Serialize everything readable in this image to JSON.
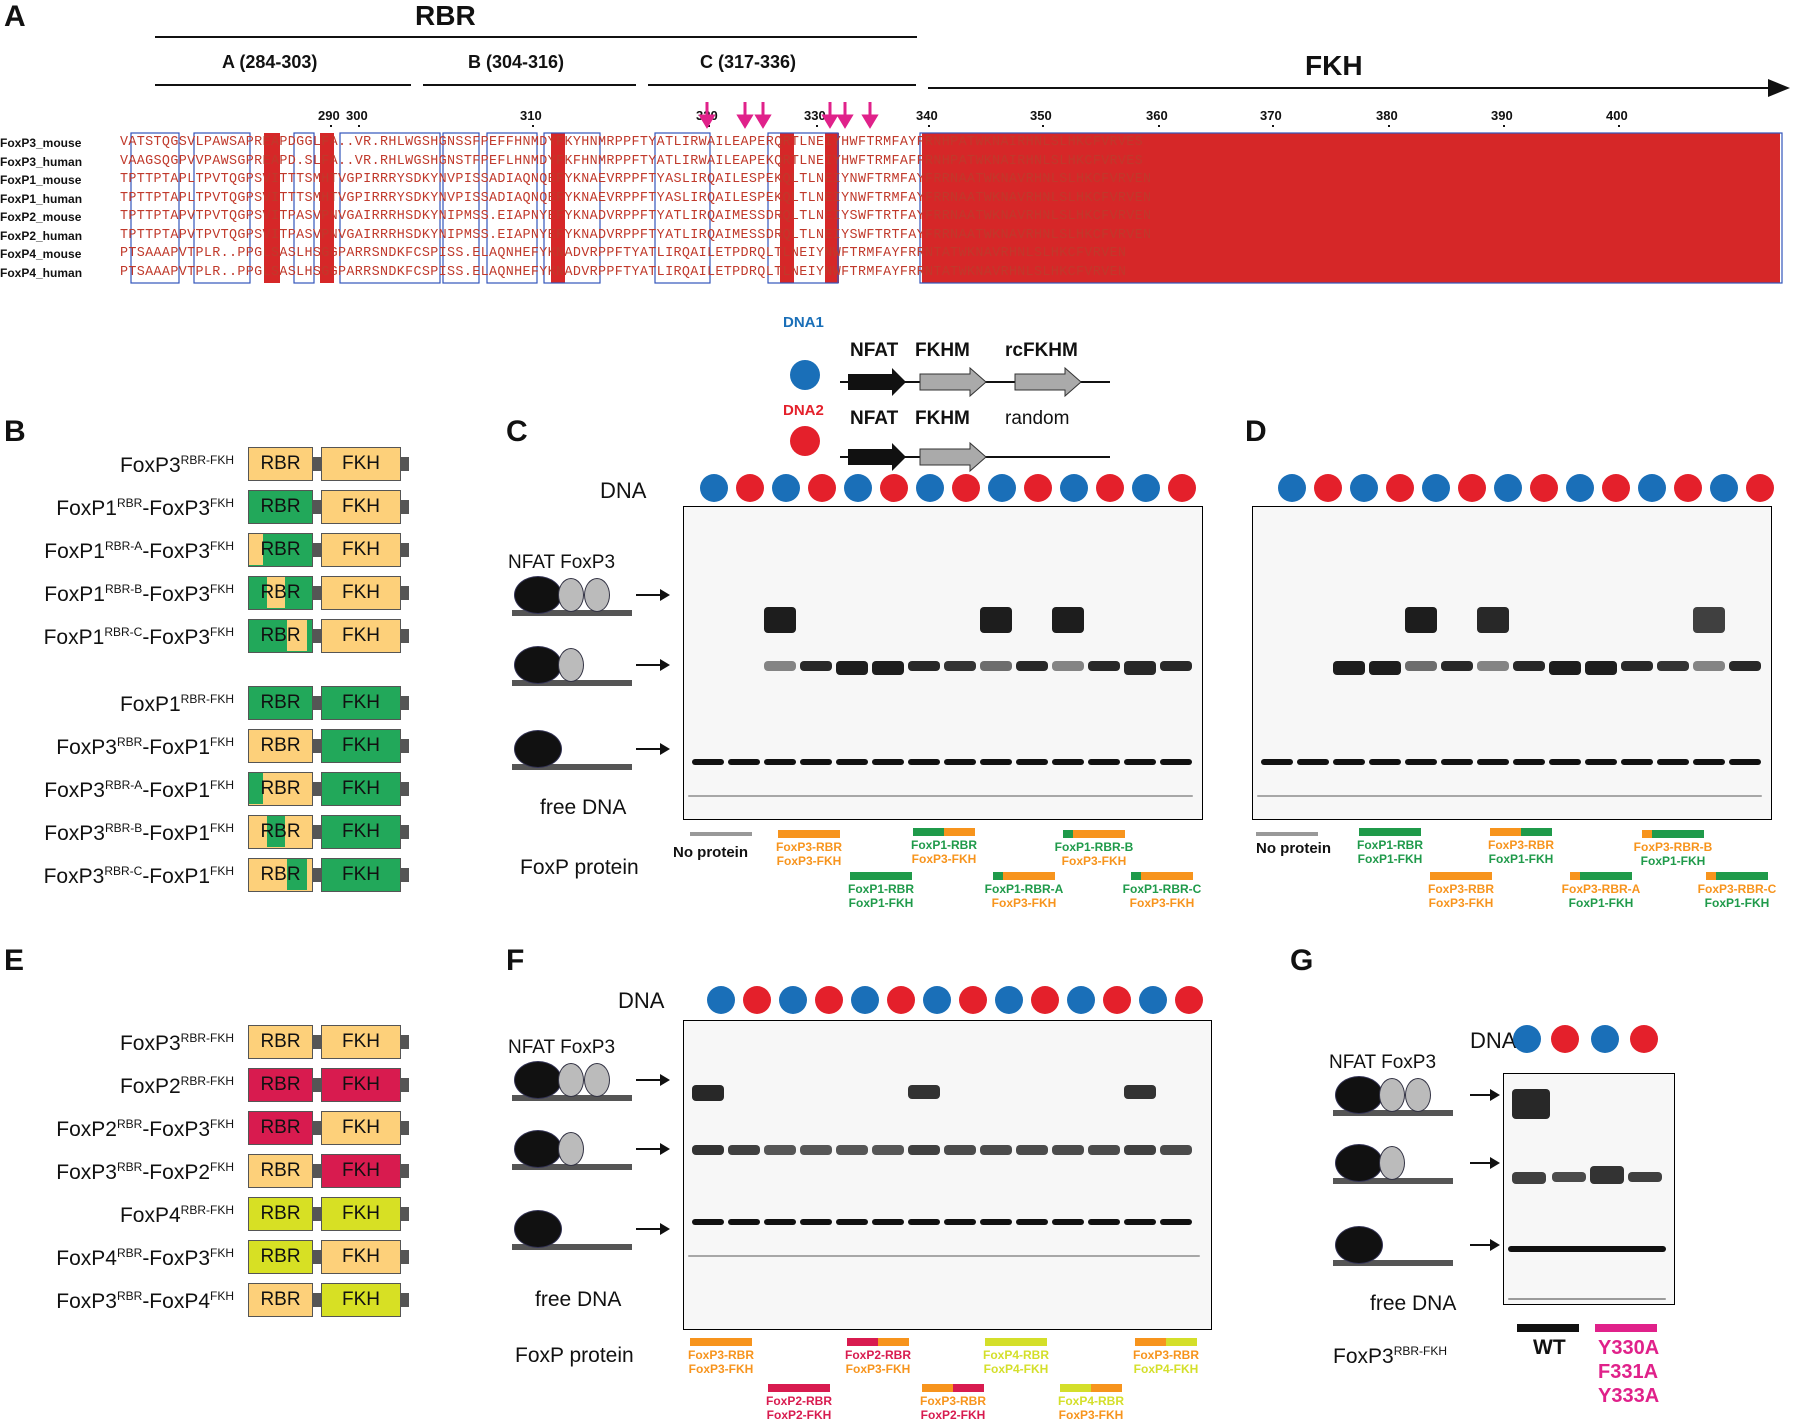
{
  "panels": {
    "A": "A",
    "B": "B",
    "C": "C",
    "D": "D",
    "E": "E",
    "F": "F",
    "G": "G"
  },
  "panel_a": {
    "rbr_label": "RBR",
    "fkh_label": "FKH",
    "region_a": "A (284-303)",
    "region_b": "B (304-316)",
    "region_c": "C (317-336)",
    "ticks": [
      "290",
      "300",
      "310",
      "320",
      "330",
      "340",
      "350",
      "360",
      "370",
      "380",
      "390",
      "400"
    ],
    "sequences": [
      {
        "name": "FoxP3_mouse",
        "seq": "VATSTQGSVLPAWSAPREAPDGGLFA..VR.RHLWGSHGNSSFPEFFHNMDYFKYHNMRPPFTYATLIRWAILEAPERQRTLNEIYHWFTRMFAYFRNHPATWKNAIRHNLSLHKCFVRVES"
      },
      {
        "name": "FoxP3_human",
        "seq": "VAAGSQGPVVPAWSGPREAPD.SLFA..VR.RHLWGSHGNSTFPEFLHNMDYFKFHNMRPPFTYATLIRWAILEAPEKQRTLNEIYHWFTRMFAFFRNHPATWKNAIRHNLSLHKCFVRVES"
      },
      {
        "name": "FoxP1_mouse",
        "seq": "TPTTPTAPLTPVTQGPSVITTTSMHTVGPIRRRYSDKYNVPISSADIAQNQEFYKNAEVRPPFTYASLIRQAILESPEKQLTLNEIYNWFTRMFAYFRRNAATWKNAVRHNLSLHKCFVRVEN"
      },
      {
        "name": "FoxP1_human",
        "seq": "TPTTPTAPLTPVTQGPSVITTTSMHTVGPIRRRYSDKYNVPISSADIAQNQEFYKNAEVRPPFTYASLIRQAILESPEKQLTLNEIYNWFTRMFAYFRRNAATWKNAVRHNLSLHKCFVRVEN"
      },
      {
        "name": "FoxP2_mouse",
        "seq": "TPTTPTAPVTPVTQGPSVITPASVPNVGAIRRRHSDKYNIPMSS.EIAPNYEFYKNADVRPPFTYATLIRQAIMESSDRQLTLNEIYSWFTRTFAYFRRNAATWKNAVRHNLSLHKCFVRVEN"
      },
      {
        "name": "FoxP2_human",
        "seq": "TPTTPTAPVTPVTQGPSVITPASVPNVGAIRRRHSDKYNIPMSS.EIAPNYEFYKNADVRPPFTYATLIRQAIMESSDRQLTLNEIYSWFTRTFAYFRRNAATWKNAVRHNLSLHKCFVRVEN"
      },
      {
        "name": "FoxP4_mouse",
        "seq": "PTSAAAPVTPLR..PPGLSASLHSGGPARRSNDKFCSPISS.ELAQNHEFYKNADVRPPFTYATLIRQAILETPDRQLTLNEIYNWFTRMFAYFRRNTATWKNAVRHNLSLHKCFVRVEN"
      },
      {
        "name": "FoxP4_human",
        "seq": "PTSAAAPVTPLR..PPGLSASLHSGGPARRSNDKFCSPISS.ELAQNHEFYKNADVRPPFTYATLIRQAILETPDRQLTLNEIYNWFTRMFAYFRRNTATWKNAVRHNLSLHKCFVRVEN"
      }
    ]
  },
  "dna_legend": {
    "dna1": "DNA1",
    "dna2": "DNA2",
    "nfat": "NFAT",
    "fkhm": "FKHM",
    "rcfkhm": "rcFKHM",
    "random": "random"
  },
  "gel_labels": {
    "dna": "DNA",
    "nfat": "NFAT",
    "foxp3": "FoxP3",
    "free_dna": "free DNA",
    "foxp_protein": "FoxP protein",
    "no_protein": "No protein"
  },
  "colors": {
    "foxp3": "#f7941d",
    "foxp1": "#1f9a4a",
    "foxp2": "#d81b4f",
    "foxp4": "#d4df2a",
    "dna1": "#1a6fb8",
    "dna2": "#e4202b",
    "mutant": "#e0218a"
  },
  "panel_b": {
    "constructs": [
      {
        "name": "FoxP3",
        "sup1": "RBR-FKH",
        "mid": "",
        "sup2": "",
        "rbr": "RBR",
        "fkh": "FKH",
        "scheme": "33"
      },
      {
        "name": "FoxP1",
        "sup1": "RBR",
        "mid": "-FoxP3",
        "sup2": "FKH",
        "rbr": "RBR",
        "fkh": "FKH",
        "scheme": "13"
      },
      {
        "name": "FoxP1",
        "sup1": "RBR-A",
        "mid": "-FoxP3",
        "sup2": "FKH",
        "rbr": "RBR",
        "fkh": "FKH",
        "scheme": "13a"
      },
      {
        "name": "FoxP1",
        "sup1": "RBR-B",
        "mid": "-FoxP3",
        "sup2": "FKH",
        "rbr": "RBR",
        "fkh": "FKH",
        "scheme": "13b"
      },
      {
        "name": "FoxP1",
        "sup1": "RBR-C",
        "mid": "-FoxP3",
        "sup2": "FKH",
        "rbr": "RBR",
        "fkh": "FKH",
        "scheme": "13c"
      },
      {
        "name": "FoxP1",
        "sup1": "RBR-FKH",
        "mid": "",
        "sup2": "",
        "rbr": "RBR",
        "fkh": "FKH",
        "scheme": "11"
      },
      {
        "name": "FoxP3",
        "sup1": "RBR",
        "mid": "-FoxP1",
        "sup2": "FKH",
        "rbr": "RBR",
        "fkh": "FKH",
        "scheme": "31"
      },
      {
        "name": "FoxP3",
        "sup1": "RBR-A",
        "mid": "-FoxP1",
        "sup2": "FKH",
        "rbr": "RBR",
        "fkh": "FKH",
        "scheme": "31a"
      },
      {
        "name": "FoxP3",
        "sup1": "RBR-B",
        "mid": "-FoxP1",
        "sup2": "FKH",
        "rbr": "RBR",
        "fkh": "FKH",
        "scheme": "31b"
      },
      {
        "name": "FoxP3",
        "sup1": "RBR-C",
        "mid": "-FoxP1",
        "sup2": "FKH",
        "rbr": "RBR",
        "fkh": "FKH",
        "scheme": "31c"
      }
    ]
  },
  "panel_e": {
    "constructs": [
      {
        "name": "FoxP3",
        "sup1": "RBR-FKH",
        "mid": "",
        "sup2": "",
        "rbr": "RBR",
        "fkh": "FKH",
        "scheme": "33"
      },
      {
        "name": "FoxP2",
        "sup1": "RBR-FKH",
        "mid": "",
        "sup2": "",
        "rbr": "RBR",
        "fkh": "FKH",
        "scheme": "22"
      },
      {
        "name": "FoxP2",
        "sup1": "RBR",
        "mid": "-FoxP3",
        "sup2": "FKH",
        "rbr": "RBR",
        "fkh": "FKH",
        "scheme": "23"
      },
      {
        "name": "FoxP3",
        "sup1": "RBR",
        "mid": "-FoxP2",
        "sup2": "FKH",
        "rbr": "RBR",
        "fkh": "FKH",
        "scheme": "32"
      },
      {
        "name": "FoxP4",
        "sup1": "RBR-FKH",
        "mid": "",
        "sup2": "",
        "rbr": "RBR",
        "fkh": "FKH",
        "scheme": "44"
      },
      {
        "name": "FoxP4",
        "sup1": "RBR",
        "mid": "-FoxP3",
        "sup2": "FKH",
        "rbr": "RBR",
        "fkh": "FKH",
        "scheme": "43"
      },
      {
        "name": "FoxP3",
        "sup1": "RBR",
        "mid": "-FoxP4",
        "sup2": "FKH",
        "rbr": "RBR",
        "fkh": "FKH",
        "scheme": "34"
      }
    ]
  },
  "panel_c_lanes": [
    {
      "l1": "FoxP3-RBR",
      "l2": "FoxP3-FKH"
    },
    {
      "l1": "FoxP1-RBR",
      "l2": "FoxP1-FKH"
    },
    {
      "l1": "FoxP1-RBR",
      "l2": "FoxP3-FKH"
    },
    {
      "l1": "FoxP1-RBR-A",
      "l2": "FoxP3-FKH"
    },
    {
      "l1": "FoxP1-RBR-B",
      "l2": "FoxP3-FKH"
    },
    {
      "l1": "FoxP1-RBR-C",
      "l2": "FoxP3-FKH"
    }
  ],
  "panel_d_lanes": [
    {
      "l1": "FoxP1-RBR",
      "l2": "FoxP1-FKH"
    },
    {
      "l1": "FoxP3-RBR",
      "l2": "FoxP3-FKH"
    },
    {
      "l1": "FoxP3-RBR",
      "l2": "FoxP1-FKH"
    },
    {
      "l1": "FoxP3-RBR-A",
      "l2": "FoxP1-FKH"
    },
    {
      "l1": "FoxP3-RBR-B",
      "l2": "FoxP1-FKH"
    },
    {
      "l1": "FoxP3-RBR-C",
      "l2": "FoxP1-FKH"
    }
  ],
  "panel_f_lanes": [
    {
      "l1": "FoxP3-RBR",
      "l2": "FoxP3-FKH"
    },
    {
      "l1": "FoxP2-RBR",
      "l2": "FoxP2-FKH"
    },
    {
      "l1": "FoxP2-RBR",
      "l2": "FoxP3-FKH"
    },
    {
      "l1": "FoxP3-RBR",
      "l2": "FoxP2-FKH"
    },
    {
      "l1": "FoxP4-RBR",
      "l2": "FoxP4-FKH"
    },
    {
      "l1": "FoxP4-RBR",
      "l2": "FoxP3-FKH"
    },
    {
      "l1": "FoxP3-RBR",
      "l2": "FoxP4-FKH"
    }
  ],
  "panel_g": {
    "protein": "FoxP3",
    "protein_sup": "RBR-FKH",
    "wt": "WT",
    "mut1": "Y330A",
    "mut2": "F331A",
    "mut3": "Y333A"
  }
}
